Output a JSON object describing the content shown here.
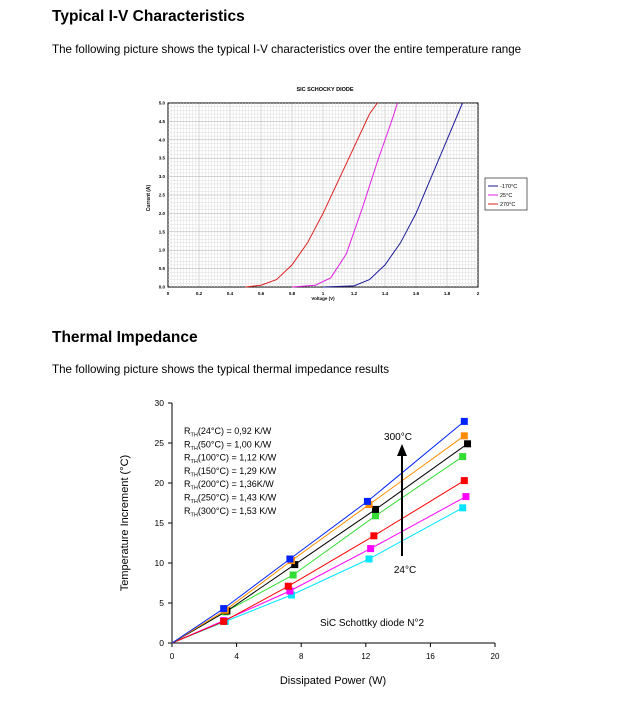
{
  "sections": {
    "iv": {
      "heading": "Typical I-V Characteristics",
      "intro": "The following picture shows the typical I-V characteristics over the entire temperature range"
    },
    "thermal": {
      "heading": "Thermal Impedance",
      "intro": "The following picture shows the typical thermal impedance results"
    }
  },
  "chart_data": [
    {
      "type": "line",
      "title": "SIC SCHOCKY DIODE",
      "xlabel": "Voltage (V)",
      "ylabel": "Current (A)",
      "xlim": [
        0,
        2
      ],
      "ylim": [
        0,
        5
      ],
      "xticks": [
        "0",
        "0.2",
        "0.4",
        "0.6",
        "0.8",
        "1",
        "1.2",
        "1.4",
        "1.6",
        "1.8",
        "2"
      ],
      "yticks": [
        "0.0",
        "0.5",
        "1.0",
        "1.5",
        "2.0",
        "2.5",
        "3.0",
        "3.5",
        "4.0",
        "4.5",
        "5.0"
      ],
      "grid": true,
      "legend": "right",
      "series": [
        {
          "name": "-170°C",
          "color": "#1a1a99",
          "points": [
            [
              1.0,
              0
            ],
            [
              1.2,
              0.03
            ],
            [
              1.3,
              0.2
            ],
            [
              1.4,
              0.6
            ],
            [
              1.5,
              1.2
            ],
            [
              1.6,
              2.0
            ],
            [
              1.7,
              3.0
            ],
            [
              1.8,
              4.0
            ],
            [
              1.9,
              5.0
            ]
          ]
        },
        {
          "name": "25°C",
          "color": "#e020e0",
          "points": [
            [
              0.8,
              0
            ],
            [
              0.95,
              0.05
            ],
            [
              1.05,
              0.25
            ],
            [
              1.15,
              0.9
            ],
            [
              1.25,
              2.1
            ],
            [
              1.35,
              3.4
            ],
            [
              1.45,
              4.6
            ],
            [
              1.48,
              5.0
            ]
          ]
        },
        {
          "name": "270°C",
          "color": "#e02020",
          "points": [
            [
              0.5,
              0
            ],
            [
              0.6,
              0.05
            ],
            [
              0.7,
              0.2
            ],
            [
              0.8,
              0.6
            ],
            [
              0.9,
              1.2
            ],
            [
              1.0,
              2.0
            ],
            [
              1.1,
              2.9
            ],
            [
              1.2,
              3.8
            ],
            [
              1.3,
              4.7
            ],
            [
              1.35,
              5.0
            ]
          ]
        }
      ]
    },
    {
      "type": "scatter",
      "xlabel": "Dissipated Power (W)",
      "ylabel": "Temperature Increment (°C)",
      "xlim": [
        0,
        20
      ],
      "ylim": [
        0,
        30
      ],
      "xticks": [
        "0",
        "4",
        "8",
        "12",
        "16",
        "20"
      ],
      "yticks": [
        "0",
        "5",
        "10",
        "15",
        "20",
        "25",
        "30"
      ],
      "legend_lines": [
        "(24°C) = 0,92 K/W",
        "(50°C) = 1,00 K/W",
        "(100°C) = 1,12  K/W",
        "(150°C) = 1,29 K/W",
        "(200°C) = 1,36K/W",
        "(250°C) = 1,43 K/W",
        "(300°C) = 1,53 K/W"
      ],
      "legend_prefix": "R",
      "legend_sub": "TH",
      "annotations": {
        "top": "300°C",
        "bottom": "24°C",
        "note": "SiC Schottky diode N°2"
      },
      "series": [
        {
          "color": "#00e5ff",
          "points": [
            [
              0,
              0
            ],
            [
              3.3,
              2.7
            ],
            [
              7.4,
              6.0
            ],
            [
              12.2,
              10.5
            ],
            [
              18,
              16.9
            ]
          ]
        },
        {
          "color": "#ff00ff",
          "points": [
            [
              0,
              0
            ],
            [
              3.2,
              2.8
            ],
            [
              7.3,
              6.5
            ],
            [
              12.3,
              11.8
            ],
            [
              18.2,
              18.3
            ]
          ]
        },
        {
          "color": "#ff0000",
          "points": [
            [
              0,
              0
            ],
            [
              3.2,
              2.7
            ],
            [
              7.2,
              7.1
            ],
            [
              12.5,
              13.4
            ],
            [
              18.1,
              20.3
            ]
          ]
        },
        {
          "color": "#33dd33",
          "points": [
            [
              0,
              0
            ],
            [
              3.3,
              3.9
            ],
            [
              7.5,
              8.5
            ],
            [
              12.6,
              15.9
            ],
            [
              18,
              23.3
            ]
          ]
        },
        {
          "color": "#000000",
          "points": [
            [
              0,
              0
            ],
            [
              3.4,
              4.0
            ],
            [
              7.6,
              9.8
            ],
            [
              12.6,
              16.7
            ],
            [
              18.3,
              24.9
            ]
          ]
        },
        {
          "color": "#ff8c00",
          "points": [
            [
              0,
              0
            ],
            [
              3.3,
              4.1
            ],
            [
              7.4,
              10.3
            ],
            [
              12.2,
              17.3
            ],
            [
              18.1,
              25.9
            ]
          ]
        },
        {
          "color": "#0022ff",
          "points": [
            [
              0,
              0
            ],
            [
              3.2,
              4.3
            ],
            [
              7.3,
              10.5
            ],
            [
              12.1,
              17.7
            ],
            [
              18.1,
              27.7
            ]
          ]
        }
      ]
    }
  ]
}
